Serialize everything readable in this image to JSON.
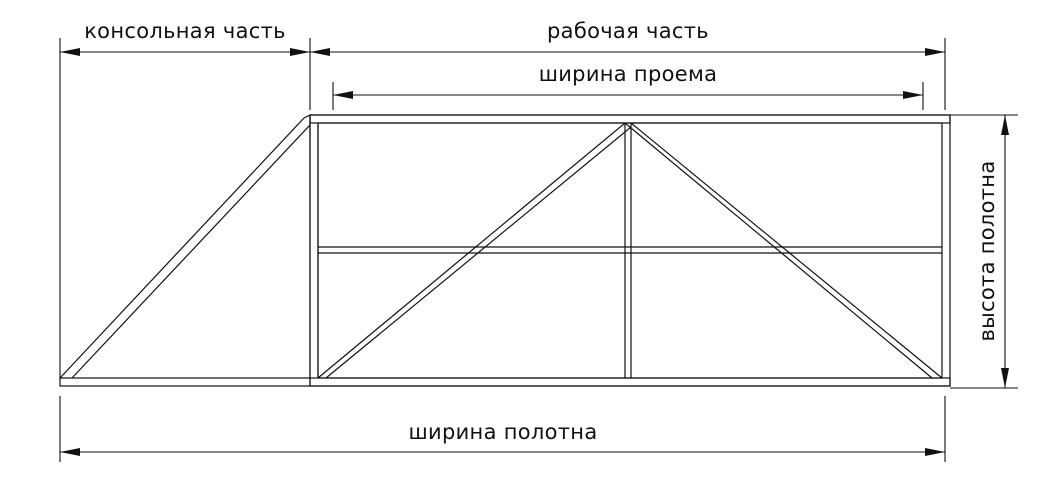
{
  "labels": {
    "console_part": "консольная часть",
    "working_part": "рабочая часть",
    "opening_width": "ширина проема",
    "leaf_height": "высота полотна",
    "leaf_width": "ширина полотна"
  },
  "colors": {
    "line": "#111111",
    "background": "#ffffff"
  }
}
